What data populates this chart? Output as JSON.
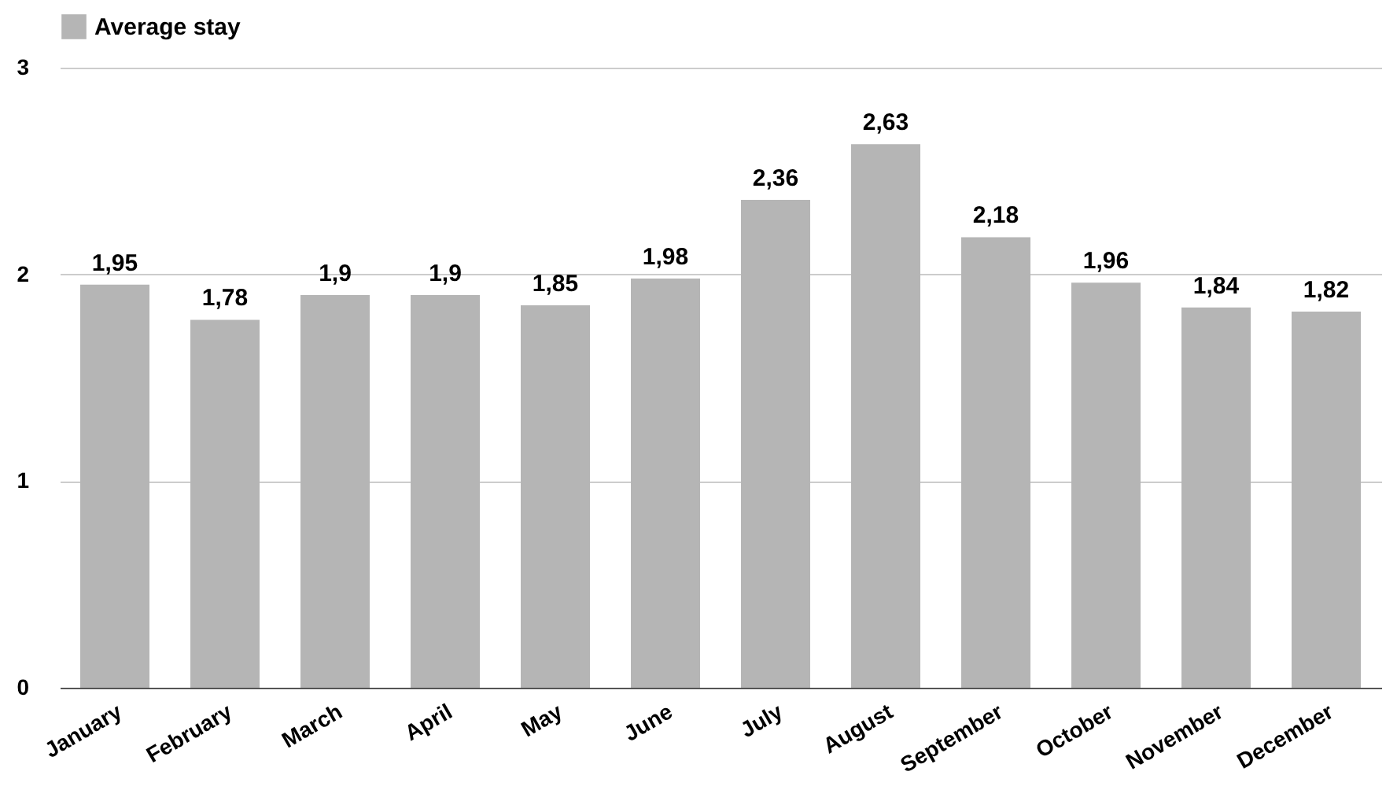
{
  "chart_data": {
    "type": "bar",
    "categories": [
      "January",
      "February",
      "March",
      "April",
      "May",
      "June",
      "July",
      "August",
      "September",
      "October",
      "November",
      "December"
    ],
    "series": [
      {
        "name": "Average stay",
        "color": "#b5b5b5",
        "values": [
          1.95,
          1.78,
          1.9,
          1.9,
          1.85,
          1.98,
          2.36,
          2.63,
          2.18,
          1.96,
          1.84,
          1.82
        ],
        "value_labels": [
          "1,95",
          "1,78",
          "1,9",
          "1,9",
          "1,85",
          "1,98",
          "2,36",
          "2,63",
          "2,18",
          "1,96",
          "1,84",
          "1,82"
        ]
      }
    ],
    "ylim": [
      0,
      3
    ],
    "yticks": [
      0,
      1,
      2,
      3
    ],
    "grid": "y",
    "legend": "top"
  }
}
